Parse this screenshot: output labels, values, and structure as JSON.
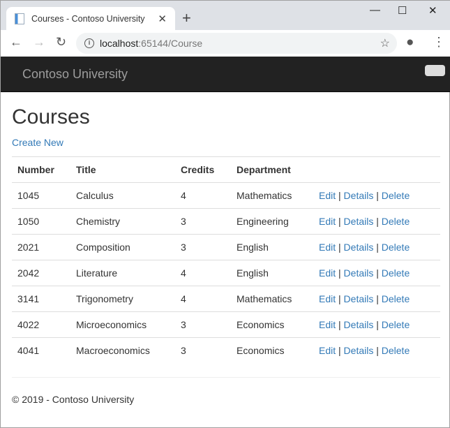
{
  "browser": {
    "tab_title": "Courses - Contoso University",
    "url_host": "localhost",
    "url_path": ":65144/Course"
  },
  "navbar": {
    "brand": "Contoso University"
  },
  "page": {
    "title": "Courses",
    "create_new": "Create New"
  },
  "table": {
    "headers": [
      "Number",
      "Title",
      "Credits",
      "Department"
    ],
    "rows": [
      [
        "1045",
        "Calculus",
        "4",
        "Mathematics"
      ],
      [
        "1050",
        "Chemistry",
        "3",
        "Engineering"
      ],
      [
        "2021",
        "Composition",
        "3",
        "English"
      ],
      [
        "2042",
        "Literature",
        "4",
        "English"
      ],
      [
        "3141",
        "Trigonometry",
        "4",
        "Mathematics"
      ],
      [
        "4022",
        "Microeconomics",
        "3",
        "Economics"
      ],
      [
        "4041",
        "Macroeconomics",
        "3",
        "Economics"
      ]
    ],
    "actions": {
      "edit": "Edit",
      "details": "Details",
      "delete": "Delete",
      "sep": "|"
    }
  },
  "footer": {
    "text": "© 2019 - Contoso University"
  }
}
